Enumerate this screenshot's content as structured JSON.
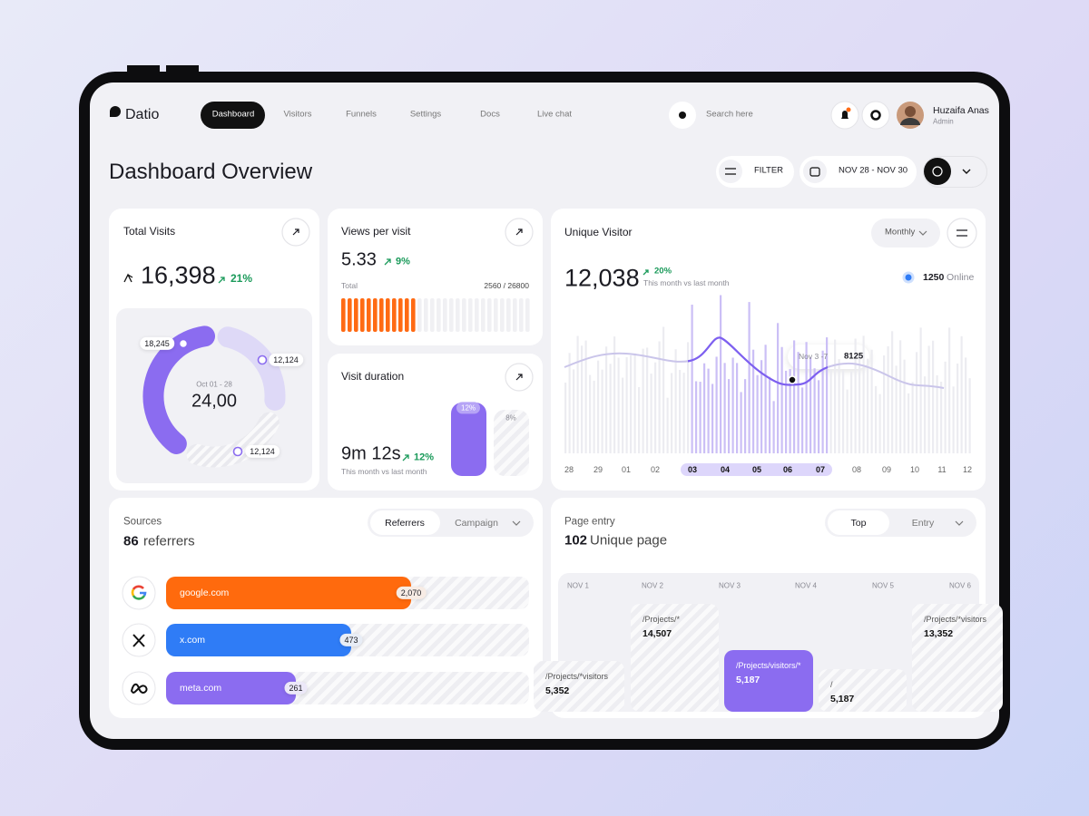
{
  "brand": "Datio",
  "nav": [
    "Dashboard",
    "Visitors",
    "Funnels",
    "Settings",
    "Docs",
    "Live chat"
  ],
  "search": "Search here",
  "user": {
    "name": "Huzaifa Anas",
    "role": "Admin"
  },
  "page_title": "Dashboard Overview",
  "toolbar": {
    "filter": "FILTER",
    "date_range": "NOV 28 - NOV 30"
  },
  "total_visits": {
    "title": "Total Visits",
    "value": "16,398",
    "change": "21%",
    "period": "Oct 01 - 28",
    "center_value": "24,00",
    "segments": [
      {
        "value": 18245,
        "label": "18,245"
      },
      {
        "value": 12124,
        "label": "12,124"
      },
      {
        "value": 12124,
        "label": "12,124"
      }
    ]
  },
  "views_per_visit": {
    "title": "Views per visit",
    "value": "5.33",
    "change": "9%",
    "total_label": "Total",
    "progress": "2560 / 26800"
  },
  "visit_duration": {
    "title": "Visit duration",
    "value": "9m 12s",
    "change": "12%",
    "note": "This month vs last month",
    "bars": [
      "12%",
      "8%"
    ]
  },
  "unique_visitor": {
    "title": "Unique Visitor",
    "period": "Monthly",
    "value": "12,038",
    "change": "20%",
    "note": "This month vs last month",
    "online_count": "1250",
    "online_label": "Online",
    "tooltip": {
      "date": "Nov 3 -7",
      "value": "8125"
    },
    "days": [
      "28",
      "29",
      "01",
      "02",
      "03",
      "04",
      "05",
      "06",
      "07",
      "08",
      "09",
      "10",
      "11",
      "12"
    ]
  },
  "sources": {
    "title": "Sources",
    "count": "86",
    "count_label": "referrers",
    "tabs": [
      "Referrers",
      "Campaign"
    ],
    "items": [
      {
        "name": "google.com",
        "value": "2,070"
      },
      {
        "name": "x.com",
        "value": "473"
      },
      {
        "name": "meta.com",
        "value": "261"
      }
    ]
  },
  "page_entry": {
    "title": "Page entry",
    "count": "102",
    "count_label": "Unique page",
    "tabs": [
      "Top",
      "Entry"
    ],
    "days": [
      "NOV 1",
      "NOV 2",
      "NOV 3",
      "NOV 4",
      "NOV 5",
      "NOV 6"
    ],
    "pages": [
      {
        "path": "/Projects/*visitors",
        "value": "5,352"
      },
      {
        "path": "/Projects/*",
        "value": "14,507"
      },
      {
        "path": "/Projects/visitors/*",
        "value": "5,187"
      },
      {
        "path": "/",
        "value": "5,187"
      },
      {
        "path": "/Projects/*visitors",
        "value": "13,352"
      }
    ]
  }
}
